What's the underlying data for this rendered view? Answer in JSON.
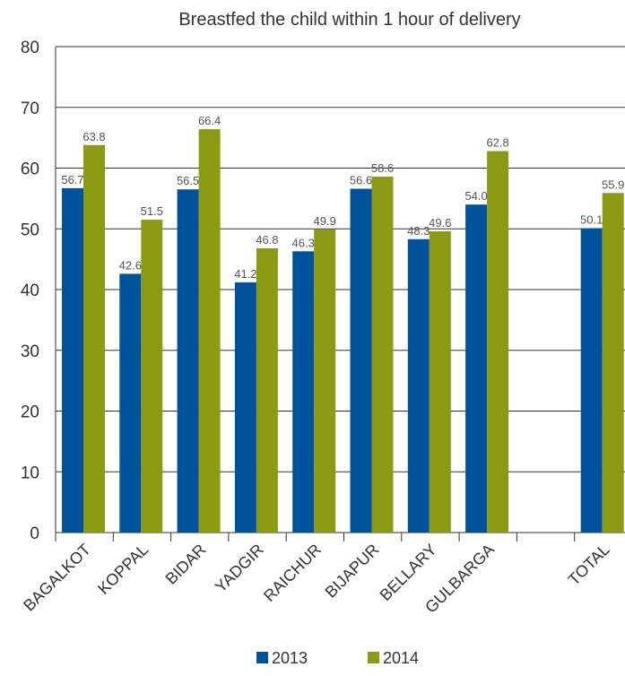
{
  "chart_data": {
    "type": "bar",
    "title": "Breastfed the child within 1 hour of delivery",
    "xlabel": "",
    "ylabel": "",
    "ylim": [
      0,
      80
    ],
    "yticks": [
      0,
      10,
      20,
      30,
      40,
      50,
      60,
      70,
      80
    ],
    "categories": [
      "BAGALKOT",
      "KOPPAL",
      "BIDAR",
      "YADGIR",
      "RAICHUR",
      "BIJAPUR",
      "BELLARY",
      "GULBARGA",
      "",
      "TOTAL"
    ],
    "series": [
      {
        "name": "2013",
        "color": "#00529b",
        "values": [
          56.7,
          42.6,
          56.5,
          41.2,
          46.3,
          56.6,
          48.3,
          54.0,
          null,
          50.1
        ],
        "labels": [
          "56.7",
          "42.6",
          "56.5",
          "41.2",
          "46.3",
          "56.6",
          "48.3",
          "54.0",
          "",
          "50.1"
        ]
      },
      {
        "name": "2014",
        "color": "#8c9914",
        "values": [
          63.8,
          51.5,
          66.4,
          46.8,
          49.9,
          58.6,
          49.6,
          62.8,
          null,
          55.9
        ],
        "labels": [
          "63.8",
          "51.5",
          "66.4",
          "46.8",
          "49.9",
          "58.6",
          "49.6",
          "62.8",
          "",
          "55.9"
        ]
      }
    ],
    "grid": true,
    "legend_position": "bottom"
  }
}
